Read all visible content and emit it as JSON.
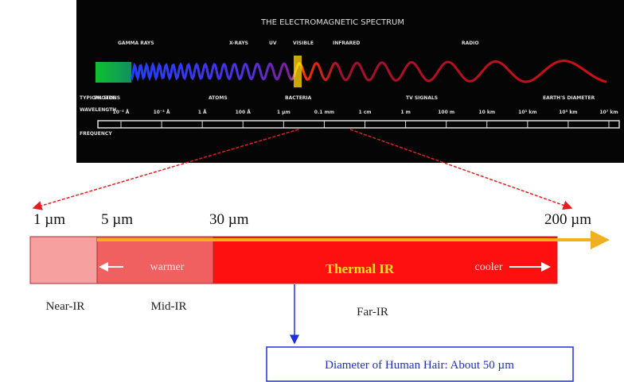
{
  "spectrum": {
    "title": "THE ELECTROMAGNETIC SPECTRUM",
    "bands": [
      "GAMMA RAYS",
      "X-RAYS",
      "UV",
      "VISIBLE",
      "INFRARED",
      "RADIO"
    ],
    "row_labels": [
      "TYPICAL SIZE",
      "WAVELENGTH",
      "FREQUENCY"
    ],
    "sizes": [
      "PHOTONS",
      "ATOMS",
      "BACTERIA",
      "TV SIGNALS",
      "EARTH'S DIAMETER"
    ],
    "wavelengths": [
      "10⁻⁵ Å",
      "10⁻³ Å",
      "1 Å",
      "100 Å",
      "1 µm",
      "0.1 mm",
      "1 cm",
      "1 m",
      "100 m",
      "10 km",
      "10³ km",
      "10⁵ km",
      "10⁷ km"
    ]
  },
  "infrared": {
    "boundaries": [
      "1 µm",
      "5 µm",
      "30 µm",
      "200 µm"
    ],
    "warmer": "warmer",
    "thermal": "Thermal IR",
    "cooler": "cooler",
    "regions": [
      "Near-IR",
      "Mid-IR",
      "Far-IR"
    ],
    "note": "Diameter of Human Hair: About 50 µm"
  }
}
